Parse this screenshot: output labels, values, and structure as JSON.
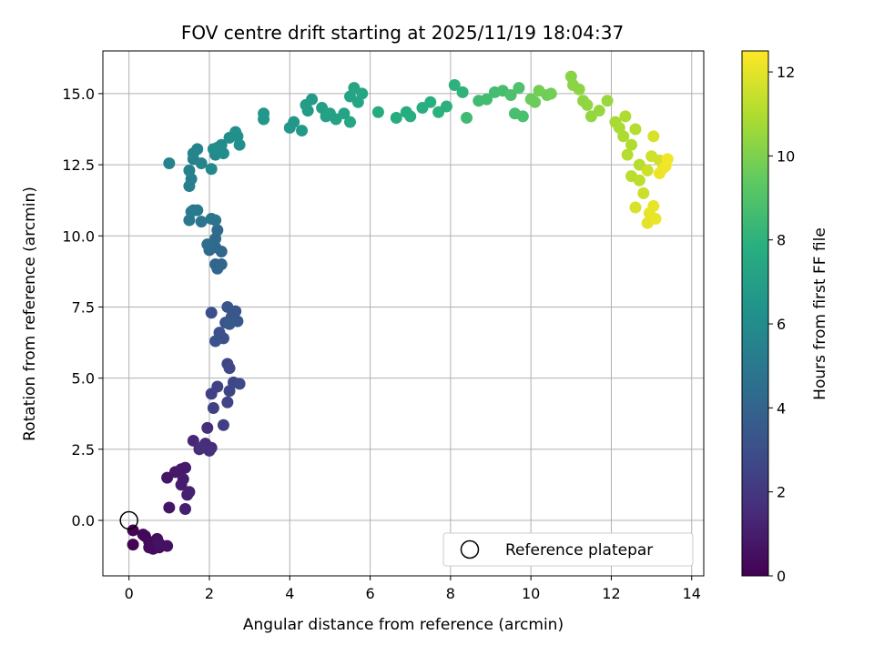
{
  "chart_data": {
    "type": "scatter",
    "title": "FOV centre drift starting at 2025/11/19 18:04:37",
    "xlabel": "Angular distance from reference (arcmin)",
    "ylabel": "Rotation from reference (arcmin)",
    "xlim": [
      -0.65,
      14.3
    ],
    "ylim": [
      -1.95,
      16.5
    ],
    "xticks": [
      0,
      2,
      4,
      6,
      8,
      10,
      12,
      14
    ],
    "yticks": [
      0.0,
      2.5,
      5.0,
      7.5,
      10.0,
      12.5,
      15.0
    ],
    "xtick_labels": [
      "0",
      "2",
      "4",
      "6",
      "8",
      "10",
      "12",
      "14"
    ],
    "ytick_labels": [
      "0.0",
      "2.5",
      "5.0",
      "7.5",
      "10.0",
      "12.5",
      "15.0"
    ],
    "grid": true,
    "colorbar": {
      "label": "Hours from first FF file",
      "colormap": "viridis",
      "range": [
        0,
        12.5
      ],
      "ticks": [
        0,
        2,
        4,
        6,
        8,
        10,
        12
      ],
      "tick_labels": [
        "0",
        "2",
        "4",
        "6",
        "8",
        "10",
        "12"
      ]
    },
    "legend": {
      "position": "lower-right",
      "entries": [
        "Reference platepar"
      ]
    },
    "reference_point": {
      "x": 0,
      "y": 0
    },
    "series": [
      {
        "name": "FOV centre drift",
        "points": [
          [
            0.1,
            -0.35,
            0.05
          ],
          [
            0.1,
            -0.85,
            0.1
          ],
          [
            0.35,
            -0.5,
            0.2
          ],
          [
            0.4,
            -0.55,
            0.25
          ],
          [
            0.5,
            -0.75,
            0.3
          ],
          [
            0.5,
            -0.95,
            0.35
          ],
          [
            0.6,
            -1.0,
            0.4
          ],
          [
            0.7,
            -0.65,
            0.45
          ],
          [
            0.75,
            -0.95,
            0.5
          ],
          [
            0.95,
            -0.9,
            0.55
          ],
          [
            0.75,
            -0.8,
            0.6
          ],
          [
            1.0,
            0.45,
            0.7
          ],
          [
            0.95,
            1.5,
            0.75
          ],
          [
            1.15,
            1.7,
            0.8
          ],
          [
            1.3,
            1.8,
            0.85
          ],
          [
            1.4,
            1.85,
            0.9
          ],
          [
            1.35,
            1.45,
            0.95
          ],
          [
            1.3,
            1.25,
            1.0
          ],
          [
            1.45,
            0.9,
            1.05
          ],
          [
            1.4,
            0.4,
            1.1
          ],
          [
            1.5,
            1.0,
            1.15
          ],
          [
            1.6,
            2.8,
            1.4
          ],
          [
            1.75,
            2.5,
            1.45
          ],
          [
            1.9,
            2.7,
            1.5
          ],
          [
            2.05,
            2.55,
            1.55
          ],
          [
            1.95,
            3.25,
            1.6
          ],
          [
            2.0,
            2.45,
            1.65
          ],
          [
            1.8,
            2.55,
            1.7
          ],
          [
            2.35,
            3.35,
            2.3
          ],
          [
            2.1,
            3.95,
            2.35
          ],
          [
            2.05,
            4.45,
            2.4
          ],
          [
            2.2,
            4.7,
            2.45
          ],
          [
            2.45,
            4.15,
            2.5
          ],
          [
            2.5,
            4.55,
            2.55
          ],
          [
            2.45,
            5.5,
            2.6
          ],
          [
            2.5,
            5.35,
            2.65
          ],
          [
            2.6,
            4.85,
            2.7
          ],
          [
            2.75,
            4.8,
            2.75
          ],
          [
            2.05,
            7.3,
            3.0
          ],
          [
            2.35,
            6.4,
            3.05
          ],
          [
            2.25,
            6.6,
            3.1
          ],
          [
            2.15,
            6.3,
            3.15
          ],
          [
            2.4,
            6.95,
            3.2
          ],
          [
            2.45,
            7.5,
            3.25
          ],
          [
            2.55,
            7.15,
            3.3
          ],
          [
            2.65,
            7.35,
            3.35
          ],
          [
            2.7,
            7.0,
            3.4
          ],
          [
            2.5,
            6.9,
            3.45
          ],
          [
            2.2,
            8.85,
            4.0
          ],
          [
            2.15,
            9.0,
            4.05
          ],
          [
            2.3,
            9.0,
            4.1
          ],
          [
            2.3,
            9.45,
            4.15
          ],
          [
            2.15,
            9.6,
            4.2
          ],
          [
            2.0,
            9.5,
            4.25
          ],
          [
            2.15,
            9.9,
            4.3
          ],
          [
            2.2,
            10.2,
            4.35
          ],
          [
            1.95,
            9.7,
            4.4
          ],
          [
            2.05,
            10.6,
            4.8
          ],
          [
            2.15,
            10.55,
            4.85
          ],
          [
            1.8,
            10.5,
            4.9
          ],
          [
            1.5,
            10.55,
            4.95
          ],
          [
            1.6,
            10.9,
            5.0
          ],
          [
            1.7,
            10.9,
            5.05
          ],
          [
            1.55,
            10.85,
            5.1
          ],
          [
            1.5,
            11.75,
            5.3
          ],
          [
            1.55,
            12.0,
            5.35
          ],
          [
            1.5,
            12.3,
            5.4
          ],
          [
            1.6,
            12.7,
            5.45
          ],
          [
            1.7,
            13.05,
            5.5
          ],
          [
            1.0,
            12.55,
            5.55
          ],
          [
            1.8,
            12.55,
            5.6
          ],
          [
            1.6,
            12.9,
            5.65
          ],
          [
            2.05,
            12.35,
            5.8
          ],
          [
            2.15,
            12.85,
            5.85
          ],
          [
            2.2,
            13.1,
            5.9
          ],
          [
            2.3,
            13.2,
            5.95
          ],
          [
            2.1,
            13.05,
            6.0
          ],
          [
            2.35,
            12.9,
            6.05
          ],
          [
            2.5,
            13.45,
            6.1
          ],
          [
            2.7,
            13.5,
            6.15
          ],
          [
            2.75,
            13.2,
            6.2
          ],
          [
            2.65,
            13.65,
            6.25
          ],
          [
            3.35,
            14.1,
            6.5
          ],
          [
            3.35,
            14.3,
            6.55
          ],
          [
            4.0,
            13.8,
            6.6
          ],
          [
            4.1,
            14.0,
            6.65
          ],
          [
            4.3,
            13.7,
            6.7
          ],
          [
            4.45,
            14.4,
            6.75
          ],
          [
            4.55,
            14.8,
            6.8
          ],
          [
            4.4,
            14.6,
            6.85
          ],
          [
            4.8,
            14.5,
            7.0
          ],
          [
            4.9,
            14.2,
            7.05
          ],
          [
            5.0,
            14.3,
            7.1
          ],
          [
            5.15,
            14.1,
            7.15
          ],
          [
            5.35,
            14.3,
            7.2
          ],
          [
            5.5,
            14.9,
            7.25
          ],
          [
            5.6,
            15.2,
            7.3
          ],
          [
            5.7,
            14.7,
            7.35
          ],
          [
            5.5,
            14.0,
            7.4
          ],
          [
            5.8,
            15.0,
            7.45
          ],
          [
            6.2,
            14.35,
            7.6
          ],
          [
            6.65,
            14.15,
            7.65
          ],
          [
            6.9,
            14.35,
            7.7
          ],
          [
            7.0,
            14.2,
            7.75
          ],
          [
            7.3,
            14.5,
            7.8
          ],
          [
            7.5,
            14.7,
            7.85
          ],
          [
            7.7,
            14.35,
            7.9
          ],
          [
            7.9,
            14.55,
            7.95
          ],
          [
            8.1,
            15.3,
            8.0
          ],
          [
            8.3,
            15.05,
            8.05
          ],
          [
            8.4,
            14.15,
            8.5
          ],
          [
            8.7,
            14.75,
            8.55
          ],
          [
            8.9,
            14.8,
            8.6
          ],
          [
            9.1,
            15.05,
            8.65
          ],
          [
            9.3,
            15.1,
            8.7
          ],
          [
            9.6,
            14.3,
            8.75
          ],
          [
            9.8,
            14.2,
            8.8
          ],
          [
            9.5,
            14.95,
            8.85
          ],
          [
            9.7,
            15.2,
            8.9
          ],
          [
            10.0,
            14.8,
            9.6
          ],
          [
            10.1,
            14.7,
            9.65
          ],
          [
            10.4,
            14.95,
            9.7
          ],
          [
            10.5,
            15.0,
            9.75
          ],
          [
            10.2,
            15.1,
            9.8
          ],
          [
            11.0,
            15.6,
            10.2
          ],
          [
            11.05,
            15.3,
            10.25
          ],
          [
            11.2,
            15.15,
            10.3
          ],
          [
            11.3,
            14.75,
            10.35
          ],
          [
            11.4,
            14.6,
            10.4
          ],
          [
            11.5,
            14.2,
            10.45
          ],
          [
            11.7,
            14.4,
            10.5
          ],
          [
            11.9,
            14.75,
            10.55
          ],
          [
            12.1,
            14.0,
            10.8
          ],
          [
            12.2,
            13.8,
            10.85
          ],
          [
            12.3,
            13.5,
            10.9
          ],
          [
            12.35,
            14.2,
            10.95
          ],
          [
            12.5,
            13.2,
            11.0
          ],
          [
            12.6,
            13.75,
            11.05
          ],
          [
            12.4,
            12.85,
            11.1
          ],
          [
            12.7,
            12.5,
            11.15
          ],
          [
            12.5,
            12.1,
            11.2
          ],
          [
            12.7,
            11.95,
            11.25
          ],
          [
            12.8,
            11.5,
            11.5
          ],
          [
            12.9,
            12.3,
            11.55
          ],
          [
            13.0,
            12.8,
            11.6
          ],
          [
            13.2,
            12.65,
            11.65
          ],
          [
            13.3,
            12.4,
            11.7
          ],
          [
            13.05,
            13.5,
            11.75
          ],
          [
            12.6,
            11.0,
            11.8
          ],
          [
            12.9,
            10.45,
            12.0
          ],
          [
            12.95,
            10.8,
            12.05
          ],
          [
            13.05,
            11.05,
            12.1
          ],
          [
            13.1,
            10.6,
            12.15
          ],
          [
            13.2,
            12.2,
            12.2
          ],
          [
            13.35,
            12.45,
            12.25
          ],
          [
            13.4,
            12.7,
            12.3
          ]
        ]
      }
    ]
  }
}
